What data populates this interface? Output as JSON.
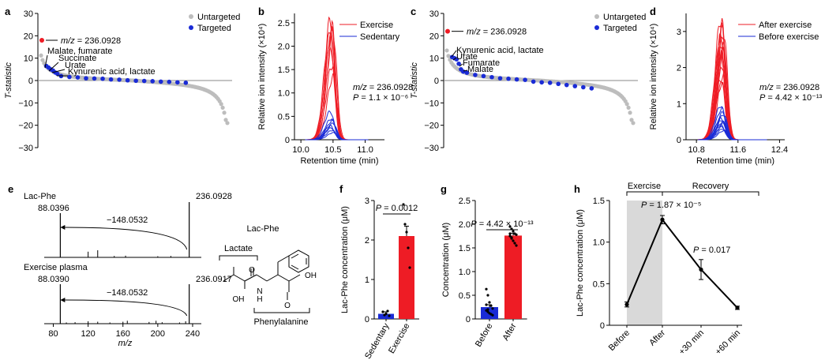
{
  "colors": {
    "red": "#ee1c25",
    "blue": "#1a2bd6",
    "grey": "#bdbdbd",
    "shade": "#d9d9d9",
    "black": "#000000"
  },
  "chart_data": [
    {
      "panel": "a",
      "type": "scatter",
      "ylabel": "T-statistic",
      "ylim": [
        -30,
        30
      ],
      "yticks": [
        "30",
        "20",
        "10",
        "0",
        "−10",
        "−20",
        "−30"
      ],
      "legend": [
        "Untargeted",
        "Targeted"
      ],
      "legend_position": "top-right",
      "highlight": {
        "label": "m/z = 236.0928",
        "t": 18
      },
      "annotations": [
        {
          "text": "Malate, fumarate",
          "t": 6.5
        },
        {
          "text": "Succinate",
          "t": 5.8
        },
        {
          "text": "Urate",
          "t": 5.0
        },
        {
          "text": "Kynurenic acid, lactate",
          "t": 3.0
        }
      ],
      "targeted_t": [
        6.5,
        5.8,
        5.0,
        4.5,
        3.6,
        3.0,
        2.0,
        1.6,
        1.4,
        1.0,
        0.9,
        0.8,
        0.5,
        0.4,
        0.1,
        -0.1,
        -0.2,
        -0.3,
        -0.5,
        -0.6,
        -0.8,
        -1.0
      ]
    },
    {
      "panel": "b",
      "type": "line",
      "xlabel": "Retention time (min)",
      "ylabel": "Relative ion intensity (×10⁴)",
      "xlim": [
        9.9,
        11.3
      ],
      "ylim": [
        0,
        2.7
      ],
      "xticks": [
        "10.0",
        "10.5",
        "11.0"
      ],
      "yticks": [
        "0",
        "0.5",
        "1.0",
        "1.5",
        "2.0",
        "2.5"
      ],
      "series": [
        {
          "name": "Exercise",
          "peaks": [
            2.55,
            2.45,
            2.4,
            2.3,
            2.15,
            1.9,
            1.6,
            1.35
          ]
        },
        {
          "name": "Sedentary",
          "peaks": [
            0.6,
            0.45,
            0.4,
            0.35,
            0.3,
            0.25,
            0.2,
            0.15
          ]
        }
      ],
      "annotation": {
        "mz": "m/z = 236.0928",
        "p": "P = 1.1 × 10⁻⁶"
      }
    },
    {
      "panel": "c",
      "type": "scatter",
      "ylabel": "T-statistic",
      "ylim": [
        -30,
        30
      ],
      "yticks": [
        "30",
        "20",
        "10",
        "0",
        "−10",
        "−20",
        "−30"
      ],
      "legend": [
        "Untargeted",
        "Targeted"
      ],
      "legend_position": "top-right",
      "highlight": {
        "label": "m/z = 236.0928",
        "t": 22
      },
      "annotations": [
        {
          "text": "Kynurenic acid, lactate",
          "t": 10.5
        },
        {
          "text": "Urate",
          "t": 9.5
        },
        {
          "text": "Fumarate",
          "t": 7.5
        },
        {
          "text": "Malate",
          "t": 5.0
        }
      ],
      "targeted_t": [
        10.5,
        10.0,
        9.5,
        7.5,
        5.0,
        4.0,
        3.5,
        2.5,
        2.0,
        1.5,
        1.0,
        0.8,
        0.5,
        0.3,
        -0.5,
        -0.8,
        -1.0,
        -1.5,
        -2.0,
        -2.5,
        -3.0,
        -3.5
      ]
    },
    {
      "panel": "d",
      "type": "line",
      "xlabel": "Retention time (min)",
      "ylabel": "Relative ion intensity (×10⁴)",
      "xlim": [
        10.6,
        12.5
      ],
      "ylim": [
        0,
        3.5
      ],
      "xticks": [
        "10.8",
        "11.6",
        "12.4"
      ],
      "yticks": [
        "0",
        "1",
        "2",
        "3"
      ],
      "series": [
        {
          "name": "After exercise",
          "peaks": [
            3.35,
            3.2,
            3.05,
            2.95,
            2.85,
            2.7,
            2.6,
            2.45,
            2.35,
            2.2,
            2.05,
            1.85,
            1.7,
            1.55
          ]
        },
        {
          "name": "Before exercise",
          "peaks": [
            0.95,
            0.85,
            0.75,
            0.7,
            0.6,
            0.55,
            0.5,
            0.45,
            0.4,
            0.35,
            0.3,
            0.25
          ]
        }
      ],
      "annotation": {
        "mz": "m/z = 236.0928",
        "p": "P = 4.42 × 10⁻¹³"
      }
    },
    {
      "panel": "e",
      "type": "bar",
      "subtype": "mass-spectrum",
      "xlabel": "m/z",
      "xlim": [
        75,
        250
      ],
      "xticks": [
        "80",
        "120",
        "160",
        "200",
        "240"
      ],
      "spectra": [
        {
          "name": "Lac-Phe",
          "precursor": "236.0928",
          "fragment": "88.0396",
          "loss": "−148.0532",
          "precursor_mz": 236.0928,
          "fragment_mz": 88.0396,
          "minor_peaks": [
            [
              120,
              0.2
            ],
            [
              131,
              0.25
            ],
            [
              150,
              0.05
            ],
            [
              163,
              0.06
            ],
            [
              200,
              0.04
            ],
            [
              215,
              0.05
            ]
          ]
        },
        {
          "name": "Exercise plasma",
          "precursor": "236.0917",
          "fragment": "88.0390",
          "loss": "−148.0532",
          "precursor_mz": 236.0917,
          "fragment_mz": 88.039,
          "minor_peaks": [
            [
              95,
              0.05
            ],
            [
              105,
              0.06
            ],
            [
              120,
              0.1
            ],
            [
              131,
              0.08
            ],
            [
              145,
              0.05
            ],
            [
              160,
              0.08
            ],
            [
              165,
              0.12
            ],
            [
              190,
              0.07
            ],
            [
              198,
              0.12
            ],
            [
              205,
              0.06
            ],
            [
              225,
              0.05
            ],
            [
              232,
              0.1
            ]
          ]
        }
      ],
      "structure": {
        "title": "Lac-Phe",
        "left_group": "Lactate",
        "right_group": "Phenylalanine",
        "atoms": [
          "O",
          "OH",
          "N",
          "H",
          "OH",
          "O"
        ]
      }
    },
    {
      "panel": "f",
      "type": "bar",
      "ylabel": "Lac-Phe concentration (μM)",
      "ylim": [
        0,
        3
      ],
      "yticks": [
        "0",
        "1",
        "2",
        "3"
      ],
      "categories": [
        "Sedentary",
        "Exercise"
      ],
      "values": [
        0.13,
        2.1
      ],
      "errors": [
        0.05,
        0.25
      ],
      "points": [
        [
          0.18,
          0.1,
          0.13,
          0.2,
          0.08
        ],
        [
          2.9,
          2.4,
          2.2,
          1.8,
          1.3
        ]
      ],
      "p_value": "P = 0.0012"
    },
    {
      "panel": "g",
      "type": "bar",
      "ylabel": "Concentration (μM)",
      "ylim": [
        0,
        2.5
      ],
      "yticks": [
        "0",
        "0.5",
        "1.0",
        "1.5",
        "2.0",
        "2.5"
      ],
      "categories": [
        "Before",
        "After"
      ],
      "values": [
        0.25,
        1.76
      ],
      "errors": [
        0.05,
        0.05
      ],
      "points": [
        [
          0.63,
          0.5,
          0.35,
          0.28,
          0.22,
          0.18,
          0.15,
          0.12,
          0.1,
          0.08,
          0.3,
          0.2
        ],
        [
          1.95,
          1.9,
          1.85,
          1.8,
          1.78,
          1.75,
          1.7,
          1.65,
          1.6,
          1.55,
          1.8,
          1.72
        ]
      ],
      "p_value": "P = 4.42 × 10⁻¹³"
    },
    {
      "panel": "h",
      "type": "line",
      "ylabel": "Lac-Phe concentration (μM)",
      "ylim": [
        0,
        1.5
      ],
      "yticks": [
        "0",
        "0.5",
        "1.0",
        "1.5"
      ],
      "categories": [
        "Before",
        "After",
        "+30 min",
        "+60 min"
      ],
      "values": [
        0.25,
        1.27,
        0.67,
        0.21
      ],
      "errors": [
        0.03,
        0.05,
        0.12,
        0.02
      ],
      "phases": [
        "Exercise",
        "Recovery"
      ],
      "p_values": [
        {
          "text": "P = 1.87 × 10⁻⁵",
          "at": 1
        },
        {
          "text": "P = 0.017",
          "at": 2
        }
      ]
    }
  ]
}
